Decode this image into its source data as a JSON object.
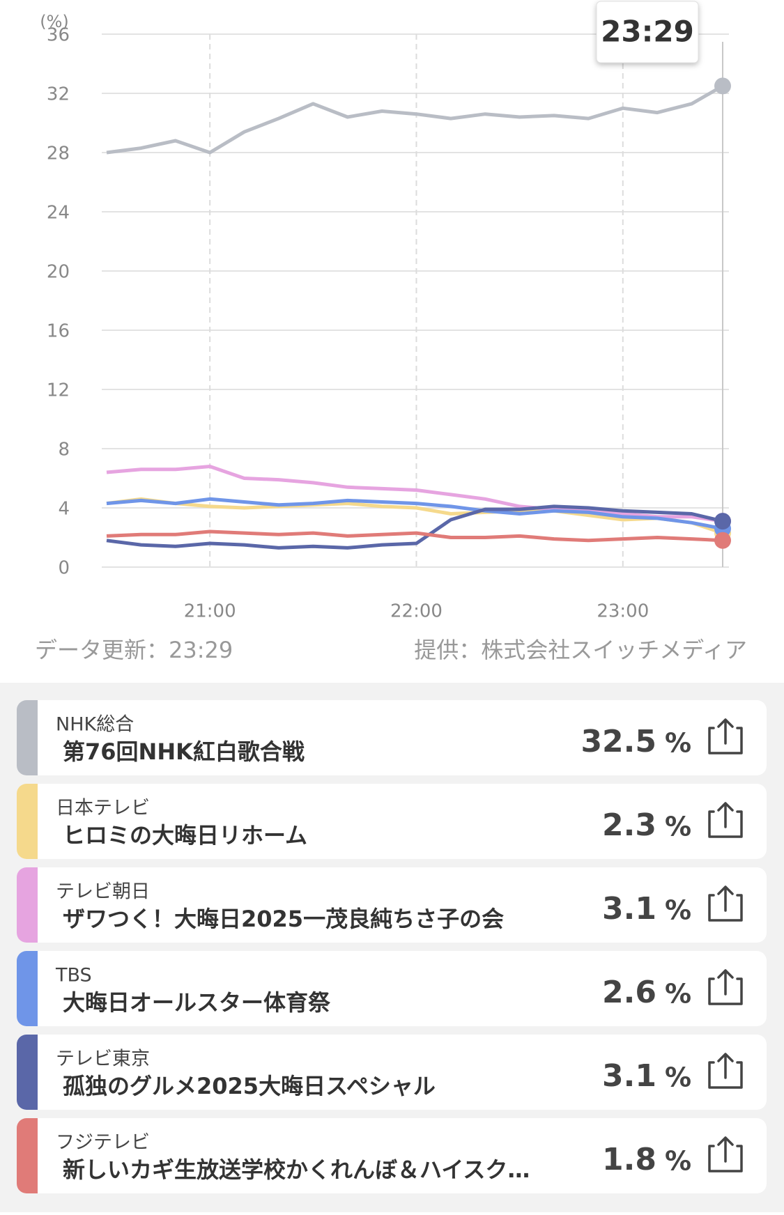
{
  "chart_data": {
    "type": "line",
    "ylabel": "(%)",
    "x": [
      1230,
      1240,
      1250,
      1260,
      1270,
      1280,
      1290,
      1300,
      1310,
      1320,
      1330,
      1340,
      1350,
      1360,
      1370,
      1380,
      1390,
      1400,
      1409
    ],
    "xlim": [
      1230,
      1409
    ],
    "xticks": [
      {
        "value": 1260,
        "label": "21:00"
      },
      {
        "value": 1320,
        "label": "22:00"
      },
      {
        "value": 1380,
        "label": "23:00"
      }
    ],
    "ylim": [
      0,
      36
    ],
    "yticks": [
      0,
      4,
      8,
      12,
      16,
      20,
      24,
      28,
      32,
      36
    ],
    "grid": true,
    "series": [
      {
        "name": "NHK総合",
        "program": "第76回NHK紅白歌合戦",
        "color": "#b9bdc5",
        "values": [
          28.0,
          28.3,
          28.8,
          28.0,
          29.4,
          30.3,
          31.3,
          30.4,
          30.8,
          30.6,
          30.3,
          30.6,
          30.4,
          30.5,
          30.3,
          31.0,
          30.7,
          31.3,
          32.5
        ]
      },
      {
        "name": "日本テレビ",
        "program": "ヒロミの大晦日リホーム",
        "color": "#f5d98c",
        "values": [
          4.3,
          4.6,
          4.3,
          4.1,
          4.0,
          4.1,
          4.2,
          4.3,
          4.1,
          4.0,
          3.6,
          3.7,
          3.8,
          3.8,
          3.5,
          3.2,
          3.3,
          3.0,
          2.3
        ]
      },
      {
        "name": "テレビ朝日",
        "program": "ザワつく！大晦日2025一茂良純ちさ子の会",
        "color": "#e6a4e0",
        "values": [
          6.4,
          6.6,
          6.6,
          6.8,
          6.0,
          5.9,
          5.7,
          5.4,
          5.3,
          5.2,
          4.9,
          4.6,
          4.1,
          3.9,
          3.8,
          3.6,
          3.4,
          3.4,
          3.1
        ]
      },
      {
        "name": "TBS",
        "program": "大晦日オールスター体育祭",
        "color": "#6f95e8",
        "values": [
          4.3,
          4.5,
          4.3,
          4.6,
          4.4,
          4.2,
          4.3,
          4.5,
          4.4,
          4.3,
          4.1,
          3.8,
          3.6,
          3.8,
          3.7,
          3.4,
          3.3,
          3.0,
          2.6
        ]
      },
      {
        "name": "テレビ東京",
        "program": "孤独のグルメ2025大晦日スペシャル",
        "color": "#5a67a8",
        "values": [
          1.8,
          1.5,
          1.4,
          1.6,
          1.5,
          1.3,
          1.4,
          1.3,
          1.5,
          1.6,
          3.2,
          3.9,
          3.9,
          4.1,
          4.0,
          3.8,
          3.7,
          3.6,
          3.1
        ]
      },
      {
        "name": "フジテレビ",
        "program": "新しいカギ生放送学校かくれんぼ＆ハイスク…",
        "color": "#e07b78",
        "values": [
          2.1,
          2.2,
          2.2,
          2.4,
          2.3,
          2.2,
          2.3,
          2.1,
          2.2,
          2.3,
          2.0,
          2.0,
          2.1,
          1.9,
          1.8,
          1.9,
          2.0,
          1.9,
          1.8
        ]
      }
    ]
  },
  "tooltip": "23:29",
  "update_text": "データ更新：23:29",
  "source_text": "提供：株式会社スイッチメディア",
  "rating_unit": "%"
}
